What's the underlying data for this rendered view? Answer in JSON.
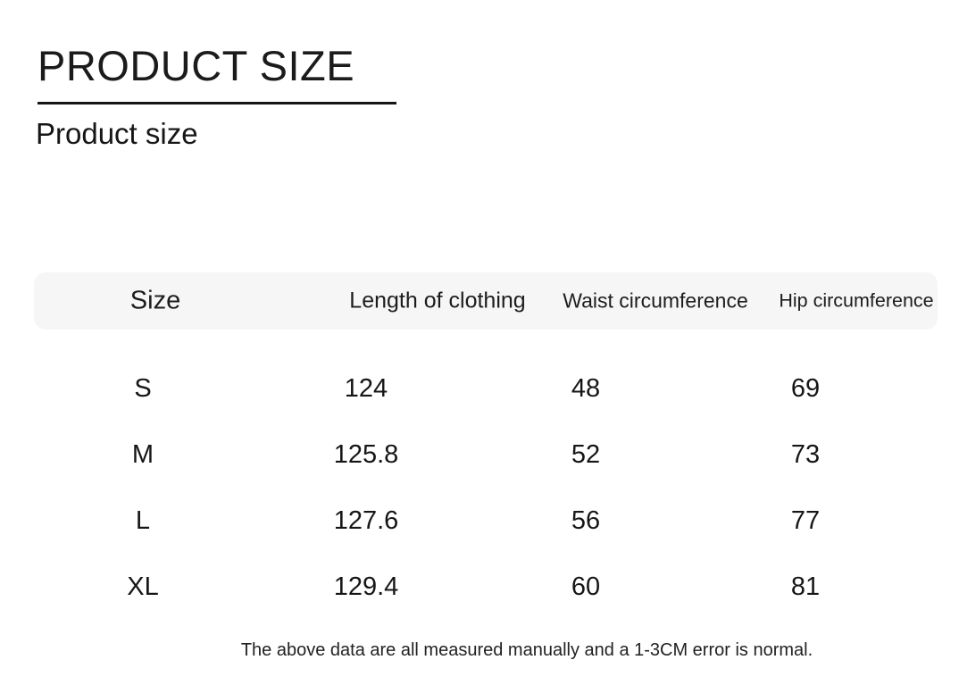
{
  "page": {
    "title": "PRODUCT SIZE",
    "subtitle": "Product size",
    "footnote": "The above data are all measured manually and a 1-3CM error is normal."
  },
  "table": {
    "headers": [
      "Size",
      "Length of clothing",
      "Waist circumference",
      "Hip circumference"
    ],
    "rows": [
      {
        "cells": [
          "S",
          "124",
          "48",
          "69"
        ]
      },
      {
        "cells": [
          "M",
          "125.8",
          "52",
          "73"
        ]
      },
      {
        "cells": [
          "L",
          "127.6",
          "56",
          "77"
        ]
      },
      {
        "cells": [
          "XL",
          "129.4",
          "60",
          "81"
        ]
      }
    ]
  },
  "colors": {
    "header_background": "#f6f6f6",
    "text": "#1c1c1c",
    "underline": "#161616"
  }
}
